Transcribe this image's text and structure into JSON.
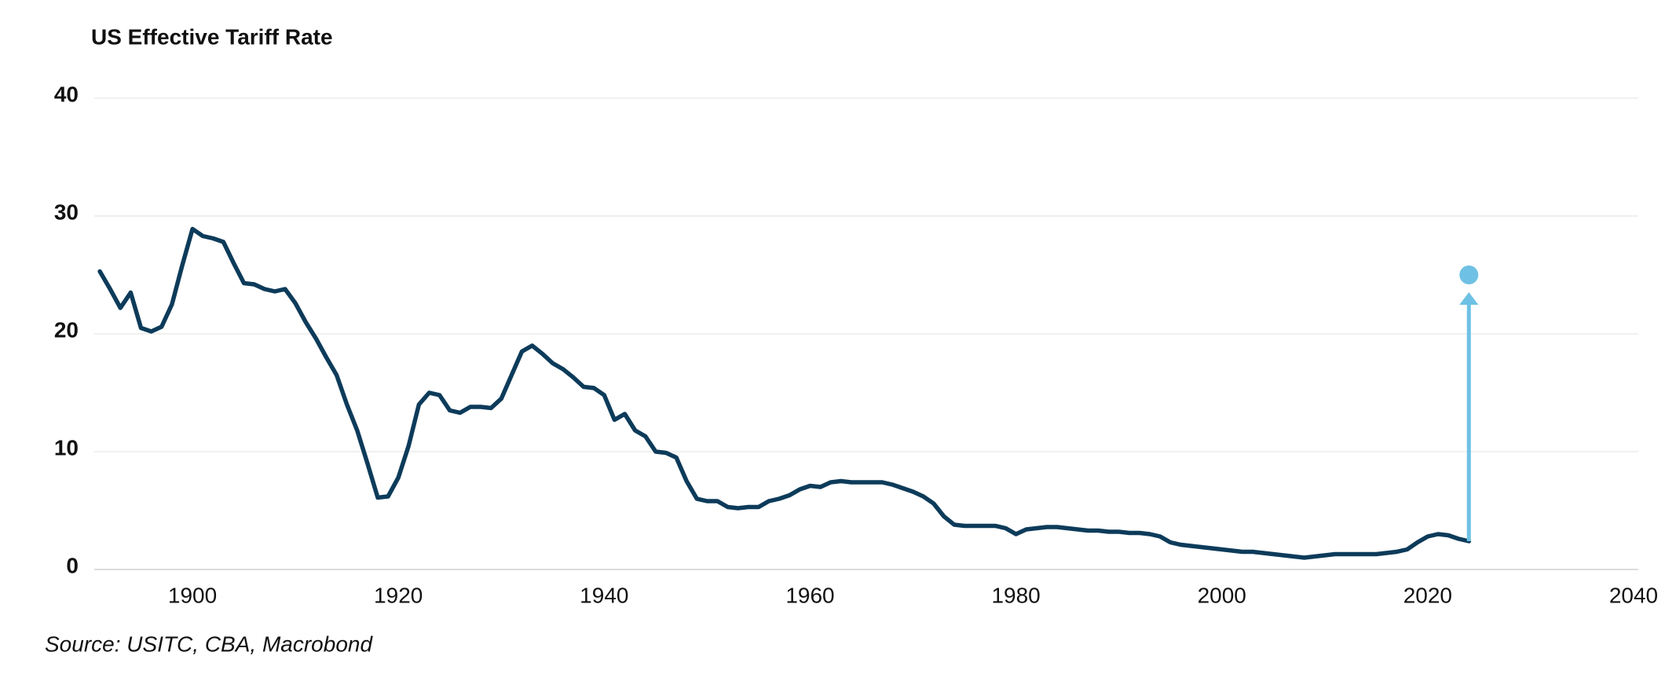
{
  "chart_data": {
    "type": "line",
    "title": "US Effective Tariff Rate",
    "source": "Source: USITC, CBA, Macrobond",
    "xlim": [
      1890,
      2040
    ],
    "xticks": [
      1900,
      1920,
      1940,
      1960,
      1980,
      2000,
      2020,
      2040
    ],
    "ylim": [
      0,
      40
    ],
    "yticks": [
      0,
      10,
      20,
      30,
      40
    ],
    "grid": true,
    "series": [
      {
        "color": "#0d3b5a",
        "x": [
          1891,
          1892,
          1893,
          1894,
          1895,
          1896,
          1897,
          1898,
          1899,
          1900,
          1901,
          1902,
          1903,
          1904,
          1905,
          1906,
          1907,
          1908,
          1909,
          1910,
          1911,
          1912,
          1913,
          1914,
          1915,
          1916,
          1917,
          1918,
          1919,
          1920,
          1921,
          1922,
          1923,
          1924,
          1925,
          1926,
          1927,
          1928,
          1929,
          1930,
          1931,
          1932,
          1933,
          1934,
          1935,
          1936,
          1937,
          1938,
          1939,
          1940,
          1941,
          1942,
          1943,
          1944,
          1945,
          1946,
          1947,
          1948,
          1949,
          1950,
          1951,
          1952,
          1953,
          1954,
          1955,
          1956,
          1957,
          1958,
          1959,
          1960,
          1961,
          1962,
          1963,
          1964,
          1965,
          1966,
          1967,
          1968,
          1969,
          1970,
          1971,
          1972,
          1973,
          1974,
          1975,
          1976,
          1977,
          1978,
          1979,
          1980,
          1981,
          1982,
          1983,
          1984,
          1985,
          1986,
          1987,
          1988,
          1989,
          1990,
          1991,
          1992,
          1993,
          1994,
          1995,
          1996,
          1997,
          1998,
          1999,
          2000,
          2001,
          2002,
          2003,
          2004,
          2005,
          2006,
          2007,
          2008,
          2009,
          2010,
          2011,
          2012,
          2013,
          2014,
          2015,
          2016,
          2017,
          2018,
          2019,
          2020,
          2021,
          2022,
          2023,
          2024
        ],
        "values": [
          25.3,
          23.8,
          22.2,
          23.5,
          20.5,
          20.2,
          20.6,
          22.5,
          25.8,
          28.9,
          28.3,
          28.1,
          27.8,
          26.0,
          24.3,
          24.2,
          23.8,
          23.6,
          23.8,
          22.6,
          21.0,
          19.6,
          18.0,
          16.5,
          14.0,
          11.8,
          9.0,
          6.1,
          6.2,
          7.8,
          10.5,
          14.0,
          15.0,
          14.8,
          13.5,
          13.3,
          13.8,
          13.8,
          13.7,
          14.5,
          16.5,
          18.5,
          19.0,
          18.3,
          17.5,
          17.0,
          16.3,
          15.5,
          15.4,
          14.8,
          12.7,
          13.2,
          11.8,
          11.3,
          10.0,
          9.9,
          9.5,
          7.5,
          6.0,
          5.8,
          5.8,
          5.3,
          5.2,
          5.3,
          5.3,
          5.8,
          6.0,
          6.3,
          6.8,
          7.1,
          7.0,
          7.4,
          7.5,
          7.4,
          7.4,
          7.4,
          7.4,
          7.2,
          6.9,
          6.6,
          6.2,
          5.6,
          4.5,
          3.8,
          3.7,
          3.7,
          3.7,
          3.7,
          3.5,
          3.0,
          3.4,
          3.5,
          3.6,
          3.6,
          3.5,
          3.4,
          3.3,
          3.3,
          3.2,
          3.2,
          3.1,
          3.1,
          3.0,
          2.8,
          2.3,
          2.1,
          2.0,
          1.9,
          1.8,
          1.7,
          1.6,
          1.5,
          1.5,
          1.4,
          1.3,
          1.2,
          1.1,
          1.0,
          1.1,
          1.2,
          1.3,
          1.3,
          1.3,
          1.3,
          1.3,
          1.4,
          1.5,
          1.7,
          2.3,
          2.8,
          3.0,
          2.9,
          2.6,
          2.4
        ]
      },
      {
        "color": "#6ec1e4",
        "x": [
          2024
        ],
        "values": [
          25
        ]
      }
    ]
  }
}
